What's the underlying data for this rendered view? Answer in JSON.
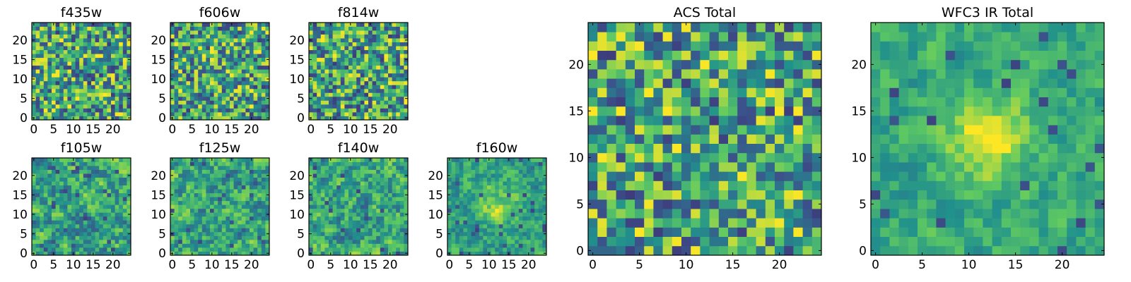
{
  "chart_data": [
    {
      "type": "heatmap",
      "title": "f435w",
      "xlabel": "",
      "ylabel": "",
      "xticks": [
        0,
        5,
        10,
        15,
        20
      ],
      "yticks": [
        0,
        5,
        10,
        15,
        20
      ],
      "xlim": [
        0,
        25
      ],
      "ylim": [
        0,
        25
      ],
      "grid": false,
      "grid_size": [
        25,
        25
      ]
    },
    {
      "type": "heatmap",
      "title": "f606w",
      "xlabel": "",
      "ylabel": "",
      "xticks": [
        0,
        5,
        10,
        15,
        20
      ],
      "yticks": [
        0,
        5,
        10,
        15,
        20
      ],
      "xlim": [
        0,
        25
      ],
      "ylim": [
        0,
        25
      ],
      "grid": false,
      "grid_size": [
        25,
        25
      ]
    },
    {
      "type": "heatmap",
      "title": "f814w",
      "xlabel": "",
      "ylabel": "",
      "xticks": [
        0,
        5,
        10,
        15,
        20
      ],
      "yticks": [
        0,
        5,
        10,
        15,
        20
      ],
      "xlim": [
        0,
        25
      ],
      "ylim": [
        0,
        25
      ],
      "grid": false,
      "grid_size": [
        25,
        25
      ]
    },
    {
      "type": "heatmap",
      "title": "f105w",
      "xlabel": "",
      "ylabel": "",
      "xticks": [
        0,
        5,
        10,
        15,
        20
      ],
      "yticks": [
        0,
        5,
        10,
        15,
        20
      ],
      "xlim": [
        0,
        25
      ],
      "ylim": [
        0,
        25
      ],
      "grid": false,
      "grid_size": [
        25,
        25
      ]
    },
    {
      "type": "heatmap",
      "title": "f125w",
      "xlabel": "",
      "ylabel": "",
      "xticks": [
        0,
        5,
        10,
        15,
        20
      ],
      "yticks": [
        0,
        5,
        10,
        15,
        20
      ],
      "xlim": [
        0,
        25
      ],
      "ylim": [
        0,
        25
      ],
      "grid": false,
      "grid_size": [
        25,
        25
      ]
    },
    {
      "type": "heatmap",
      "title": "f140w",
      "xlabel": "",
      "ylabel": "",
      "xticks": [
        0,
        5,
        10,
        15,
        20
      ],
      "yticks": [
        0,
        5,
        10,
        15,
        20
      ],
      "xlim": [
        0,
        25
      ],
      "ylim": [
        0,
        25
      ],
      "grid": false,
      "grid_size": [
        25,
        25
      ]
    },
    {
      "type": "heatmap",
      "title": "f160w",
      "xlabel": "",
      "ylabel": "",
      "xticks": [
        0,
        5,
        10,
        15,
        20
      ],
      "yticks": [
        0,
        5,
        10,
        15,
        20
      ],
      "xlim": [
        0,
        25
      ],
      "ylim": [
        0,
        25
      ],
      "grid": false,
      "grid_size": [
        25,
        25
      ]
    },
    {
      "type": "heatmap",
      "title": "ACS Total",
      "xlabel": "",
      "ylabel": "",
      "xticks": [
        0,
        5,
        10,
        15,
        20
      ],
      "yticks": [
        0,
        5,
        10,
        15,
        20
      ],
      "xlim": [
        0,
        25
      ],
      "ylim": [
        0,
        25
      ],
      "grid": false,
      "grid_size": [
        25,
        25
      ]
    },
    {
      "type": "heatmap",
      "title": "WFC3 IR Total",
      "xlabel": "",
      "ylabel": "",
      "xticks": [
        0,
        5,
        10,
        15,
        20
      ],
      "yticks": [
        0,
        5,
        10,
        15,
        20
      ],
      "xlim": [
        0,
        25
      ],
      "ylim": [
        0,
        25
      ],
      "grid": false,
      "grid_size": [
        25,
        25
      ]
    }
  ],
  "colormap": {
    "name": "viridis",
    "stops": [
      "#440154",
      "#3b528b",
      "#21918c",
      "#5ec962",
      "#fde725"
    ]
  }
}
